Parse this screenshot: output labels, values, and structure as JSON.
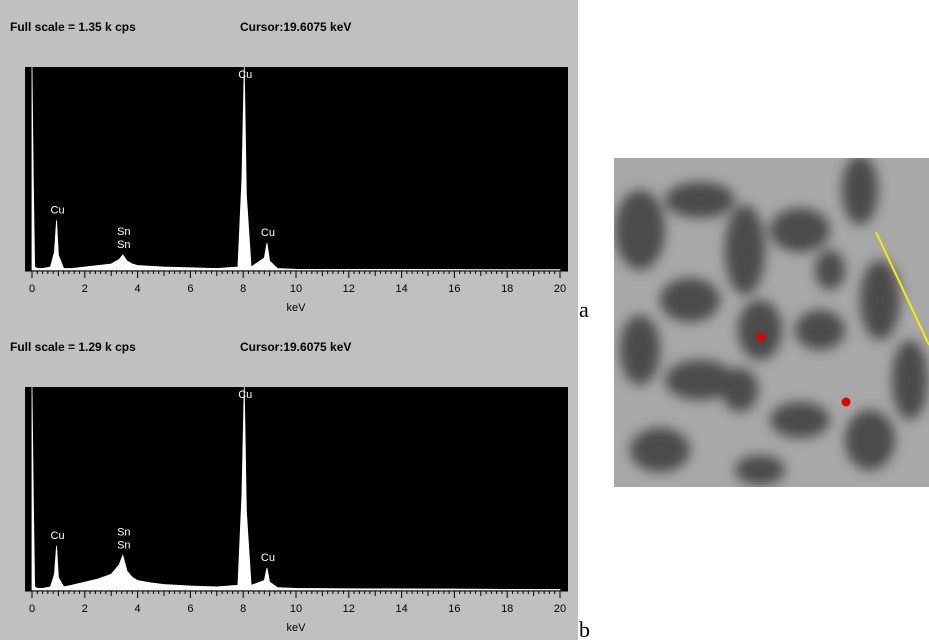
{
  "chart_data": [
    {
      "type": "area",
      "header": "Full scale = 1.35 k cps",
      "cursor": "Cursor:19.6075 keV",
      "xlabel": "keV",
      "panel_label": "a",
      "color": "#ffffff",
      "background": "#000000",
      "x": [
        0,
        0.05,
        0.1,
        0.2,
        0.4,
        0.7,
        0.85,
        0.93,
        1.0,
        1.2,
        1.5,
        2,
        2.5,
        3,
        3.3,
        3.44,
        3.6,
        3.8,
        4,
        4.5,
        5,
        6,
        7,
        7.8,
        7.95,
        8.04,
        8.12,
        8.3,
        8.8,
        8.9,
        9.0,
        9.3,
        10,
        12,
        14,
        16,
        18,
        20
      ],
      "values": [
        1.35,
        0.6,
        0.02,
        0.01,
        0.01,
        0.02,
        0.12,
        0.33,
        0.1,
        0.01,
        0.01,
        0.02,
        0.03,
        0.04,
        0.07,
        0.1,
        0.06,
        0.04,
        0.03,
        0.025,
        0.02,
        0.015,
        0.01,
        0.02,
        0.6,
        1.35,
        0.5,
        0.02,
        0.08,
        0.18,
        0.06,
        0.01,
        0.005,
        0.004,
        0.004,
        0.003,
        0.002,
        0.002
      ],
      "xlim": [
        0,
        20
      ],
      "xticks": [
        0,
        2,
        4,
        6,
        8,
        10,
        12,
        14,
        16,
        18,
        20
      ],
      "ylim": [
        0,
        1.35
      ],
      "annotations": [
        {
          "text": "Cu",
          "x": 0.93
        },
        {
          "text": "Sn",
          "x": 3.44
        },
        {
          "text": "Sn",
          "x": 3.44
        },
        {
          "text": "Cu",
          "x": 8.04
        },
        {
          "text": "Cu",
          "x": 8.9
        }
      ]
    },
    {
      "type": "area",
      "header": "Full scale = 1.29 k cps",
      "cursor": "Cursor:19.6075 keV",
      "xlabel": "keV",
      "panel_label": "b",
      "color": "#ffffff",
      "background": "#000000",
      "x": [
        0,
        0.05,
        0.1,
        0.2,
        0.4,
        0.7,
        0.85,
        0.93,
        1.0,
        1.2,
        1.5,
        2,
        2.5,
        3,
        3.3,
        3.44,
        3.6,
        3.8,
        4,
        4.5,
        5,
        6,
        7,
        7.8,
        7.95,
        8.04,
        8.12,
        8.3,
        8.8,
        8.9,
        9.0,
        9.3,
        10,
        12,
        14,
        16,
        18,
        20
      ],
      "values": [
        1.29,
        0.6,
        0.02,
        0.01,
        0.01,
        0.02,
        0.1,
        0.28,
        0.08,
        0.02,
        0.03,
        0.05,
        0.07,
        0.1,
        0.16,
        0.22,
        0.12,
        0.08,
        0.06,
        0.045,
        0.035,
        0.025,
        0.02,
        0.03,
        0.6,
        1.29,
        0.5,
        0.03,
        0.06,
        0.14,
        0.05,
        0.015,
        0.01,
        0.008,
        0.007,
        0.006,
        0.004,
        0.003
      ],
      "xlim": [
        0,
        20
      ],
      "xticks": [
        0,
        2,
        4,
        6,
        8,
        10,
        12,
        14,
        16,
        18,
        20
      ],
      "ylim": [
        0,
        1.29
      ],
      "annotations": [
        {
          "text": "Cu",
          "x": 0.93
        },
        {
          "text": "Sn",
          "x": 3.44
        },
        {
          "text": "Sn",
          "x": 3.44
        },
        {
          "text": "Cu",
          "x": 8.04
        },
        {
          "text": "Cu",
          "x": 8.9
        }
      ]
    }
  ]
}
